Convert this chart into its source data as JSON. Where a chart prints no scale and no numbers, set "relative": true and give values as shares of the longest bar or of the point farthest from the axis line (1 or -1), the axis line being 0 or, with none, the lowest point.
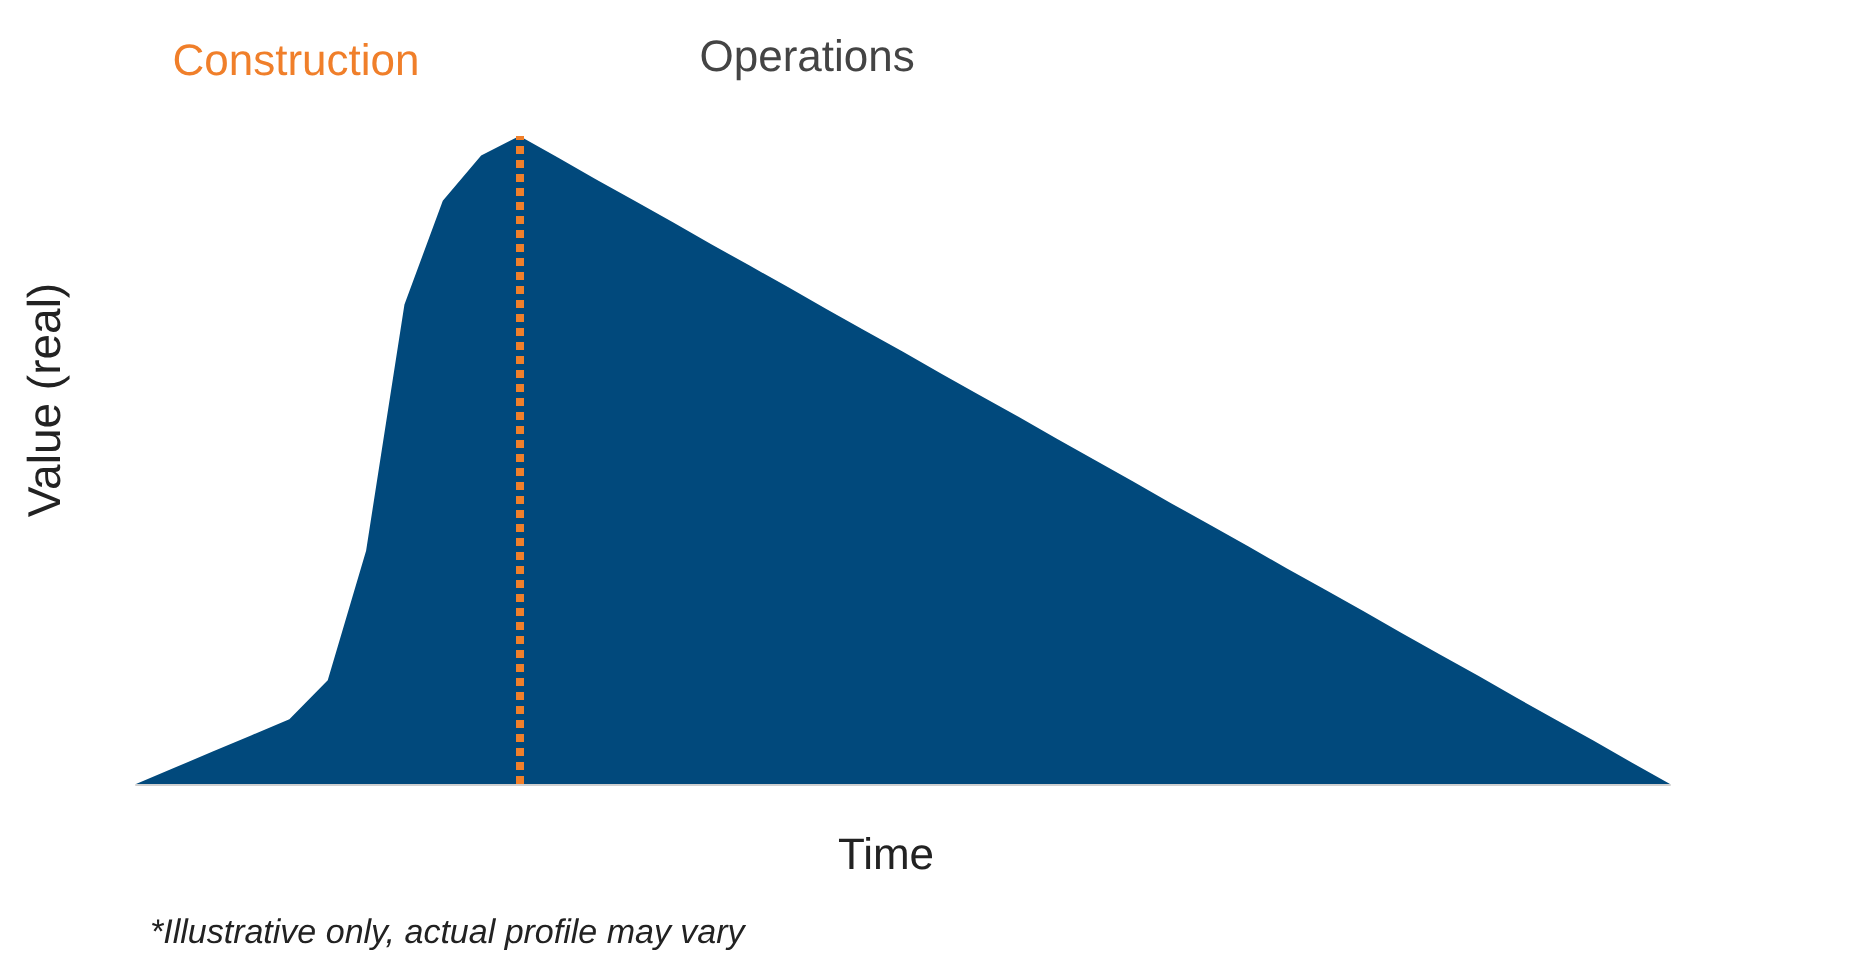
{
  "chart_data": {
    "type": "area",
    "relative": true,
    "xlabel": "Time",
    "ylabel": "Value (real)",
    "categories": [
      null,
      null,
      null,
      null,
      null,
      null,
      null,
      null,
      null,
      null,
      null,
      null,
      null,
      null,
      null,
      null,
      null,
      null,
      null,
      null,
      null,
      null,
      null,
      null,
      null,
      null,
      null,
      null,
      null,
      null,
      null,
      null,
      null,
      null,
      null,
      null,
      null,
      null,
      null,
      null,
      null
    ],
    "series": [
      {
        "color": "#01497c",
        "values": [
          0,
          0.025,
          0.05,
          0.075,
          0.1,
          0.16,
          0.36,
          0.74,
          0.9,
          0.97,
          1,
          0.967,
          0.933,
          0.9,
          0.867,
          0.833,
          0.8,
          0.767,
          0.733,
          0.7,
          0.667,
          0.633,
          0.6,
          0.567,
          0.533,
          0.5,
          0.467,
          0.433,
          0.4,
          0.367,
          0.333,
          0.3,
          0.267,
          0.233,
          0.2,
          0.167,
          0.133,
          0.1,
          0.067,
          0.033,
          0
        ]
      }
    ],
    "annotations": [
      "Construction",
      "Operations",
      "*Illustrative only, actual profile may vary"
    ],
    "grid": false,
    "marker": "none"
  }
}
